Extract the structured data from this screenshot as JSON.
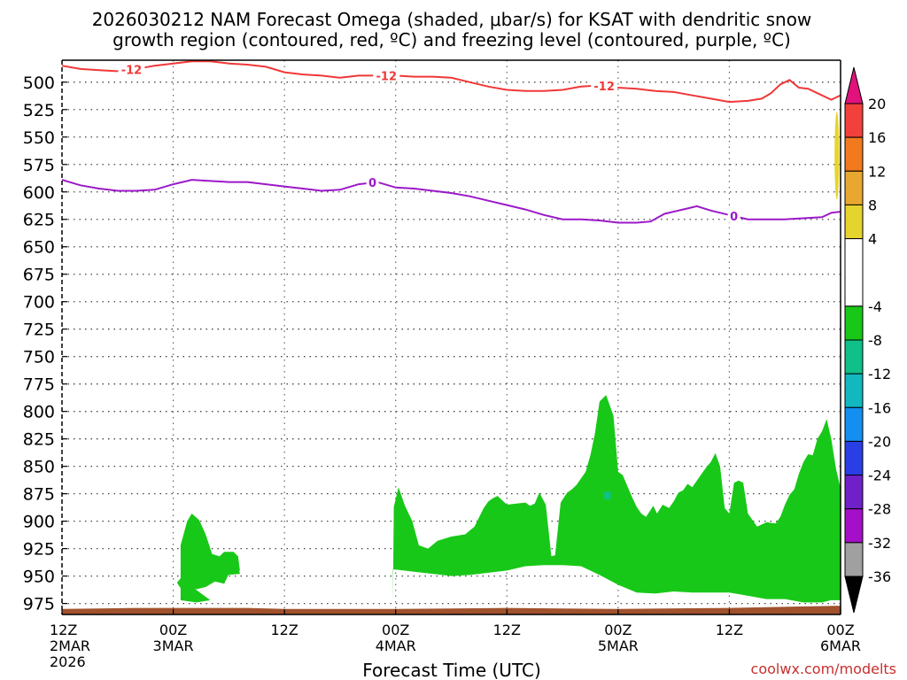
{
  "chart_data": {
    "type": "time-height",
    "title_line1": "2026030212 NAM Forecast Omega (shaded, μbar/s) for KSAT with dendritic snow",
    "title_line2": "growth region (contoured, red, ºC) and freezing level (contoured, purple, ºC)",
    "xlabel": "Forecast Time (UTC)",
    "credit": "coolwx.com/modelts",
    "x_range_hours": [
      0,
      84
    ],
    "y_range_hpa": [
      480,
      985
    ],
    "y_ticks": [
      500,
      525,
      550,
      575,
      600,
      625,
      650,
      675,
      700,
      725,
      750,
      775,
      800,
      825,
      850,
      875,
      900,
      925,
      950,
      975
    ],
    "x_ticks": [
      {
        "hour": 0,
        "label": "12Z",
        "sub": "2MAR",
        "sub2": "2026"
      },
      {
        "hour": 12,
        "label": "00Z",
        "sub": "3MAR",
        "sub2": ""
      },
      {
        "hour": 24,
        "label": "12Z",
        "sub": "",
        "sub2": ""
      },
      {
        "hour": 36,
        "label": "00Z",
        "sub": "4MAR",
        "sub2": ""
      },
      {
        "hour": 48,
        "label": "12Z",
        "sub": "",
        "sub2": ""
      },
      {
        "hour": 60,
        "label": "00Z",
        "sub": "5MAR",
        "sub2": ""
      },
      {
        "hour": 72,
        "label": "12Z",
        "sub": "",
        "sub2": ""
      },
      {
        "hour": 84,
        "label": "00Z",
        "sub": "6MAR",
        "sub2": ""
      }
    ],
    "colorbar": {
      "labels": [
        "20",
        "16",
        "12",
        "8",
        "4",
        "-4",
        "-8",
        "-12",
        "-16",
        "-20",
        "-24",
        "-28",
        "-32",
        "-36"
      ],
      "top_arrow_color": "#e0127c",
      "bottom_arrow_color": "#000000",
      "boxes": [
        {
          "lo": 16,
          "hi": 20,
          "color": "#f2403a"
        },
        {
          "lo": 12,
          "hi": 16,
          "color": "#f27a1e"
        },
        {
          "lo": 8,
          "hi": 12,
          "color": "#e8a830"
        },
        {
          "lo": 4,
          "hi": 8,
          "color": "#e6d42e"
        },
        {
          "lo": -4,
          "hi": 4,
          "color": "#ffffff"
        },
        {
          "lo": -8,
          "hi": -4,
          "color": "#18c818"
        },
        {
          "lo": -12,
          "hi": -8,
          "color": "#10c089"
        },
        {
          "lo": -16,
          "hi": -12,
          "color": "#12b8c0"
        },
        {
          "lo": -20,
          "hi": -16,
          "color": "#148ff0"
        },
        {
          "lo": -24,
          "hi": -20,
          "color": "#2a3ee6"
        },
        {
          "lo": -28,
          "hi": -24,
          "color": "#7020c8"
        },
        {
          "lo": -32,
          "hi": -28,
          "color": "#a50fc8"
        },
        {
          "lo": -36,
          "hi": -32,
          "color": "#a0a0a0"
        }
      ]
    },
    "contour_minus12": {
      "label": "-12",
      "color": "#f03838",
      "label_hours": [
        7.5,
        35,
        58.5
      ],
      "points": [
        [
          0,
          485
        ],
        [
          2,
          488
        ],
        [
          4,
          489
        ],
        [
          6,
          490
        ],
        [
          8,
          488
        ],
        [
          10,
          485
        ],
        [
          12,
          483
        ],
        [
          14,
          481
        ],
        [
          16,
          481
        ],
        [
          18,
          483
        ],
        [
          20,
          484
        ],
        [
          22,
          486
        ],
        [
          24,
          491
        ],
        [
          26,
          493
        ],
        [
          28,
          494
        ],
        [
          30,
          496
        ],
        [
          32,
          494
        ],
        [
          34,
          494
        ],
        [
          36,
          494
        ],
        [
          38,
          495
        ],
        [
          40,
          495
        ],
        [
          42,
          496
        ],
        [
          44,
          500
        ],
        [
          46,
          504
        ],
        [
          48,
          507
        ],
        [
          50,
          508
        ],
        [
          52,
          508
        ],
        [
          54,
          507
        ],
        [
          56,
          504
        ],
        [
          58,
          503
        ],
        [
          60,
          505
        ],
        [
          62,
          506
        ],
        [
          64,
          508
        ],
        [
          66,
          509
        ],
        [
          68,
          512
        ],
        [
          70,
          515
        ],
        [
          72,
          518
        ],
        [
          74,
          517
        ],
        [
          75.5,
          515
        ],
        [
          76.5,
          510
        ],
        [
          77.5,
          502
        ],
        [
          78.5,
          498
        ],
        [
          79.5,
          505
        ],
        [
          80.5,
          506
        ],
        [
          81.5,
          510
        ],
        [
          83,
          516
        ],
        [
          84,
          512
        ]
      ]
    },
    "contour_zero": {
      "label": "0",
      "color": "#9b19c8",
      "label_hours": [
        33.5,
        72.5
      ],
      "points": [
        [
          0,
          589
        ],
        [
          2,
          594
        ],
        [
          4,
          597
        ],
        [
          6,
          599
        ],
        [
          8,
          599
        ],
        [
          10,
          598
        ],
        [
          12,
          593
        ],
        [
          14,
          589
        ],
        [
          16,
          590
        ],
        [
          18,
          591
        ],
        [
          20,
          591
        ],
        [
          22,
          593
        ],
        [
          24,
          595
        ],
        [
          26,
          597
        ],
        [
          28,
          599
        ],
        [
          30,
          598
        ],
        [
          32,
          593
        ],
        [
          34,
          591
        ],
        [
          36,
          596
        ],
        [
          38,
          597
        ],
        [
          40,
          599
        ],
        [
          42,
          601
        ],
        [
          44,
          604
        ],
        [
          46,
          608
        ],
        [
          48,
          612
        ],
        [
          50,
          616
        ],
        [
          52,
          621
        ],
        [
          54,
          625
        ],
        [
          56,
          625
        ],
        [
          58,
          626
        ],
        [
          60,
          628
        ],
        [
          62,
          628
        ],
        [
          63.5,
          627
        ],
        [
          65,
          620
        ],
        [
          67,
          616
        ],
        [
          68.5,
          613
        ],
        [
          70,
          617
        ],
        [
          72,
          621
        ],
        [
          74,
          625
        ],
        [
          76,
          625
        ],
        [
          78,
          625
        ],
        [
          80,
          624
        ],
        [
          82,
          623
        ],
        [
          83,
          619
        ],
        [
          84,
          618
        ]
      ]
    },
    "omega_regions": [
      {
        "value_range": [
          -8,
          -4
        ],
        "color": "#18c818",
        "hours_top": [
          [
            12.8,
            922
          ],
          [
            13.5,
            900
          ],
          [
            14,
            893
          ],
          [
            14.8,
            899
          ],
          [
            15.5,
            912
          ],
          [
            16.2,
            930
          ],
          [
            17,
            932
          ],
          [
            17.5,
            928
          ],
          [
            18.5,
            928
          ],
          [
            19,
            932
          ],
          [
            19.2,
            945
          ],
          [
            18.5,
            945
          ],
          [
            18,
            948
          ],
          [
            17.5,
            957
          ],
          [
            16.5,
            955
          ],
          [
            15.5,
            960
          ],
          [
            14.5,
            962
          ],
          [
            13.5,
            960
          ],
          [
            12.8,
            961
          ],
          [
            12.4,
            956
          ],
          [
            12.8,
            952
          ]
        ],
        "bottom": [
          [
            12.8,
            972
          ],
          [
            14.5,
            974
          ],
          [
            16,
            972
          ]
        ]
      },
      {
        "value_range": [
          -8,
          -4
        ],
        "color": "#18c818",
        "outline": [
          [
            35.7,
            975
          ],
          [
            35.8,
            887
          ],
          [
            36.3,
            869
          ],
          [
            37,
            886
          ],
          [
            37.8,
            900
          ],
          [
            38.5,
            922
          ],
          [
            39.5,
            925
          ],
          [
            40.5,
            918
          ],
          [
            42,
            914
          ],
          [
            43.5,
            912
          ],
          [
            44.5,
            905
          ],
          [
            45.5,
            888
          ],
          [
            46,
            882
          ],
          [
            46.5,
            879
          ],
          [
            47,
            877
          ],
          [
            48,
            885
          ],
          [
            49,
            884
          ],
          [
            50,
            883
          ],
          [
            50.5,
            886
          ],
          [
            51,
            884
          ],
          [
            51.5,
            874
          ],
          [
            52.2,
            885
          ],
          [
            52.8,
            932
          ],
          [
            53.2,
            931
          ],
          [
            53.8,
            883
          ],
          [
            54.5,
            874
          ],
          [
            55,
            871
          ],
          [
            55.5,
            867
          ],
          [
            56,
            861
          ],
          [
            56.5,
            855
          ],
          [
            57,
            840
          ],
          [
            57.5,
            820
          ],
          [
            58,
            791
          ],
          [
            58.7,
            785
          ],
          [
            59.5,
            804
          ],
          [
            60,
            855
          ],
          [
            60.5,
            858
          ],
          [
            61,
            868
          ],
          [
            61.5,
            878
          ],
          [
            62,
            887
          ],
          [
            62.5,
            893
          ],
          [
            63,
            896
          ],
          [
            63.8,
            886
          ],
          [
            64.2,
            893
          ],
          [
            64.8,
            885
          ],
          [
            65.5,
            888
          ],
          [
            66,
            882
          ],
          [
            66.5,
            874
          ],
          [
            67,
            872
          ],
          [
            67.5,
            866
          ],
          [
            68,
            869
          ],
          [
            68.5,
            863
          ],
          [
            69,
            857
          ],
          [
            69.5,
            851
          ],
          [
            70,
            846
          ],
          [
            70.5,
            838
          ],
          [
            71,
            850
          ],
          [
            71.5,
            888
          ],
          [
            72,
            893
          ],
          [
            72.5,
            865
          ],
          [
            73,
            863
          ],
          [
            73.5,
            865
          ],
          [
            74,
            893
          ],
          [
            75,
            905
          ],
          [
            76,
            901
          ],
          [
            77,
            902
          ],
          [
            77.5,
            896
          ],
          [
            78,
            885
          ],
          [
            78.5,
            876
          ],
          [
            79,
            871
          ],
          [
            79.5,
            857
          ],
          [
            80,
            846
          ],
          [
            80.5,
            839
          ],
          [
            81,
            840
          ],
          [
            81.5,
            825
          ],
          [
            82,
            818
          ],
          [
            82.5,
            807
          ],
          [
            83,
            825
          ],
          [
            83.5,
            852
          ],
          [
            84,
            870
          ],
          [
            84,
            972
          ],
          [
            83,
            972
          ],
          [
            82,
            974
          ],
          [
            80,
            974
          ],
          [
            78,
            971
          ],
          [
            76,
            971
          ],
          [
            74,
            968
          ],
          [
            72,
            965
          ],
          [
            70,
            965
          ],
          [
            68,
            965
          ],
          [
            66,
            964
          ],
          [
            64,
            966
          ],
          [
            62,
            965
          ],
          [
            60,
            958
          ],
          [
            58,
            949
          ],
          [
            56,
            941
          ],
          [
            54,
            940
          ],
          [
            52,
            940
          ],
          [
            50,
            941
          ],
          [
            48,
            945
          ],
          [
            46,
            947
          ],
          [
            44,
            949
          ],
          [
            42,
            950
          ],
          [
            40,
            948
          ],
          [
            38,
            946
          ],
          [
            36,
            944
          ],
          [
            35.7,
            944
          ]
        ]
      },
      {
        "value_range": [
          -12,
          -8
        ],
        "color": "#10c089",
        "hours_top": [
          [
            58.5,
            880
          ],
          [
            59.2,
            880
          ],
          [
            59.2,
            873
          ],
          [
            58.5,
            873
          ]
        ]
      }
    ],
    "dgz_positive": {
      "value_range": [
        4,
        8
      ],
      "color": "#e6d42e",
      "hours": 83.6,
      "top": 527,
      "bottom": 607
    },
    "terrain": {
      "color": "#a0522d",
      "top_hpa": 977,
      "bottom_hpa": 985
    }
  }
}
